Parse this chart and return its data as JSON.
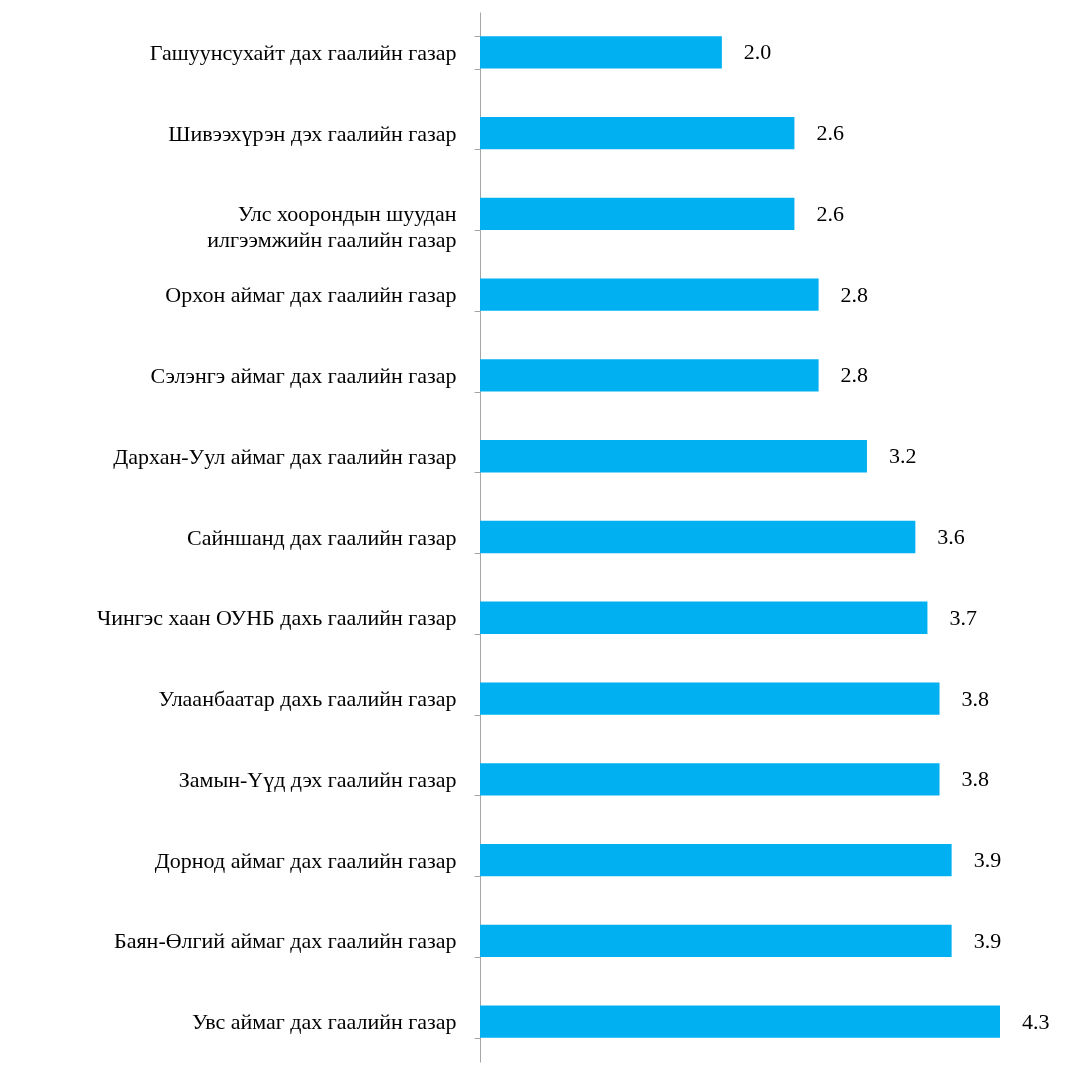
{
  "chart_data": {
    "type": "bar",
    "orientation": "horizontal",
    "color": "#00b0f0",
    "tick_labels": "y",
    "categories": [
      "Гашуунсухайт дах гаалийн газар",
      "Шивээхүрэн дэх гаалийн газар",
      "Улс хоорондын шуудан илгээмжийн гаалийн газар",
      "Орхон аймаг дах гаалийн газар",
      "Сэлэнгэ аймаг дах гаалийн газар",
      "Дархан-Уул аймаг дах гаалийн газар",
      "Сайншанд дах гаалийн газар",
      "Чингэс хаан ОУНБ дахь гаалийн газар",
      "Улаанбаатар дахь гаалийн газар",
      "Замын-Үүд дэх гаалийн газар",
      "Дорнод аймаг дах гаалийн газар",
      "Баян-Өлгий аймаг дах гаалийн газар",
      "Увс аймаг дах гаалийн газар"
    ],
    "values": [
      2.0,
      2.6,
      2.6,
      2.8,
      2.8,
      3.2,
      3.6,
      3.7,
      3.8,
      3.8,
      3.9,
      3.9,
      4.3
    ],
    "value_labels": [
      "2.0",
      "2.6",
      "2.6",
      "2.8",
      "2.8",
      "3.2",
      "3.6",
      "3.7",
      "3.8",
      "3.8",
      "3.9",
      "3.9",
      "4.3"
    ]
  }
}
